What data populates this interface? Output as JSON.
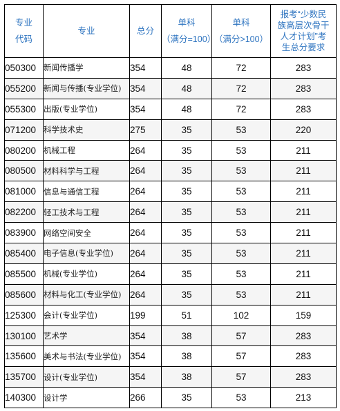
{
  "header": {
    "code_line1": "专业",
    "code_line2": "代码",
    "major": "专业",
    "total": "总分",
    "single1_line1": "单科",
    "single1_line2": "（满分=100）",
    "single2_line1": "单科",
    "single2_line2": "（满分>100）",
    "req_line1": "报考“少数民",
    "req_line2": "族高层次骨干",
    "req_line3": "人才计划”考",
    "req_line4": "生总分要求"
  },
  "rows": [
    {
      "code": "050300",
      "major": "新闻传播学",
      "total": "354",
      "s100": "48",
      "sgt100": "72",
      "req": "283"
    },
    {
      "code": "055200",
      "major": "新闻与传播(专业学位)",
      "total": "354",
      "s100": "48",
      "sgt100": "72",
      "req": "283"
    },
    {
      "code": "055300",
      "major": "出版(专业学位)",
      "total": "354",
      "s100": "48",
      "sgt100": "72",
      "req": "283"
    },
    {
      "code": "071200",
      "major": "科学技术史",
      "total": "275",
      "s100": "35",
      "sgt100": "53",
      "req": "220"
    },
    {
      "code": "080200",
      "major": "机械工程",
      "total": "264",
      "s100": "35",
      "sgt100": "53",
      "req": "211"
    },
    {
      "code": "080500",
      "major": "材料科学与工程",
      "total": "264",
      "s100": "35",
      "sgt100": "53",
      "req": "211"
    },
    {
      "code": "081000",
      "major": "信息与通信工程",
      "total": "264",
      "s100": "35",
      "sgt100": "53",
      "req": "211"
    },
    {
      "code": "082200",
      "major": "轻工技术与工程",
      "total": "264",
      "s100": "35",
      "sgt100": "53",
      "req": "211"
    },
    {
      "code": "083900",
      "major": "网络空间安全",
      "total": "264",
      "s100": "35",
      "sgt100": "53",
      "req": "211"
    },
    {
      "code": "085400",
      "major": "电子信息(专业学位)",
      "total": "264",
      "s100": "35",
      "sgt100": "53",
      "req": "211"
    },
    {
      "code": "085500",
      "major": "机械(专业学位)",
      "total": "264",
      "s100": "35",
      "sgt100": "53",
      "req": "211"
    },
    {
      "code": "085600",
      "major": "材料与化工(专业学位)",
      "total": "264",
      "s100": "35",
      "sgt100": "53",
      "req": "211"
    },
    {
      "code": "125300",
      "major": "会计(专业学位)",
      "total": "199",
      "s100": "51",
      "sgt100": "102",
      "req": "159"
    },
    {
      "code": "130100",
      "major": "艺术学",
      "total": "354",
      "s100": "38",
      "sgt100": "57",
      "req": "283"
    },
    {
      "code": "135600",
      "major": "美术与书法(专业学位)",
      "total": "354",
      "s100": "38",
      "sgt100": "57",
      "req": "283"
    },
    {
      "code": "135700",
      "major": "设计(专业学位)",
      "total": "354",
      "s100": "38",
      "sgt100": "57",
      "req": "283"
    },
    {
      "code": "140300",
      "major": "设计学",
      "total": "266",
      "s100": "35",
      "sgt100": "53",
      "req": "213"
    }
  ]
}
